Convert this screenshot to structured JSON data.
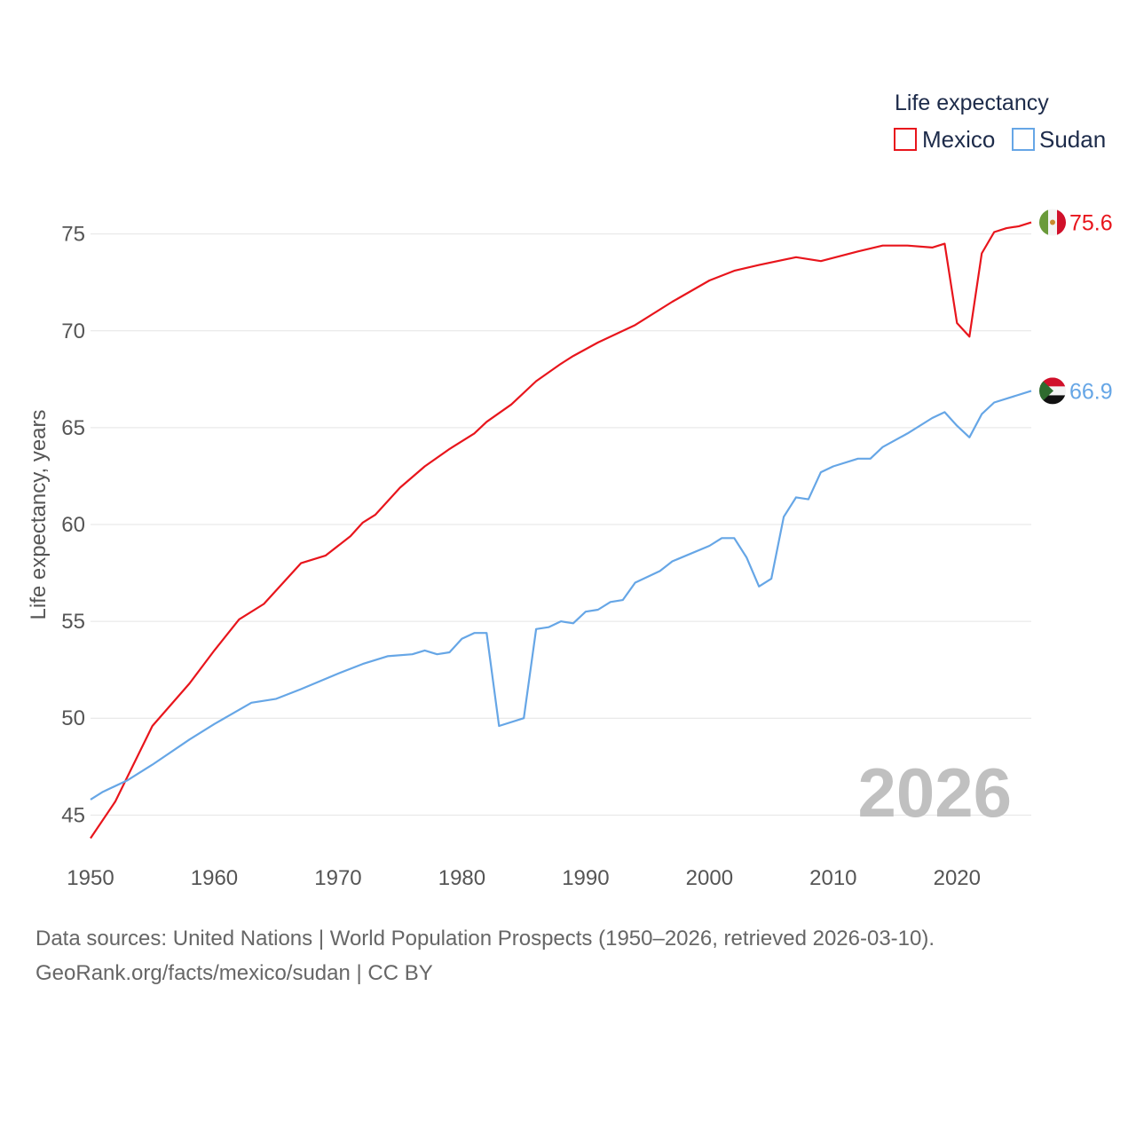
{
  "chart_data": {
    "type": "line",
    "legend_title": "Life expectancy",
    "legend_position": "top-right",
    "ylabel": "Life expectancy, years",
    "xlabel": "",
    "xlim": [
      1950,
      2026
    ],
    "ylim": [
      43,
      77
    ],
    "x_ticks": [
      1950,
      1960,
      1970,
      1980,
      1990,
      2000,
      2010,
      2020
    ],
    "y_ticks": [
      45,
      50,
      55,
      60,
      65,
      70,
      75
    ],
    "grid": true,
    "current_year_label": "2026",
    "series": [
      {
        "name": "Mexico",
        "color": "#e8151c",
        "end_label": "75.6",
        "flag": "mexico-flag",
        "points": [
          [
            1950,
            43.8
          ],
          [
            1952,
            45.7
          ],
          [
            1955,
            49.6
          ],
          [
            1958,
            51.8
          ],
          [
            1960,
            53.5
          ],
          [
            1962,
            55.1
          ],
          [
            1964,
            55.9
          ],
          [
            1967,
            58.0
          ],
          [
            1969,
            58.4
          ],
          [
            1971,
            59.4
          ],
          [
            1972,
            60.1
          ],
          [
            1973,
            60.5
          ],
          [
            1975,
            61.9
          ],
          [
            1977,
            63.0
          ],
          [
            1979,
            63.9
          ],
          [
            1981,
            64.7
          ],
          [
            1982,
            65.3
          ],
          [
            1984,
            66.2
          ],
          [
            1986,
            67.4
          ],
          [
            1988,
            68.3
          ],
          [
            1989,
            68.7
          ],
          [
            1991,
            69.4
          ],
          [
            1994,
            70.3
          ],
          [
            1997,
            71.5
          ],
          [
            2000,
            72.6
          ],
          [
            2002,
            73.1
          ],
          [
            2004,
            73.4
          ],
          [
            2007,
            73.8
          ],
          [
            2009,
            73.6
          ],
          [
            2012,
            74.1
          ],
          [
            2014,
            74.4
          ],
          [
            2016,
            74.4
          ],
          [
            2018,
            74.3
          ],
          [
            2019,
            74.5
          ],
          [
            2020,
            70.4
          ],
          [
            2021,
            69.7
          ],
          [
            2022,
            74.0
          ],
          [
            2023,
            75.1
          ],
          [
            2024,
            75.3
          ],
          [
            2025,
            75.4
          ],
          [
            2026,
            75.6
          ]
        ]
      },
      {
        "name": "Sudan",
        "color": "#66a6e6",
        "end_label": "66.9",
        "flag": "sudan-flag",
        "points": [
          [
            1950,
            45.8
          ],
          [
            1951,
            46.2
          ],
          [
            1953,
            46.8
          ],
          [
            1955,
            47.6
          ],
          [
            1958,
            48.9
          ],
          [
            1960,
            49.7
          ],
          [
            1963,
            50.8
          ],
          [
            1965,
            51.0
          ],
          [
            1967,
            51.5
          ],
          [
            1970,
            52.3
          ],
          [
            1972,
            52.8
          ],
          [
            1974,
            53.2
          ],
          [
            1976,
            53.3
          ],
          [
            1977,
            53.5
          ],
          [
            1978,
            53.3
          ],
          [
            1979,
            53.4
          ],
          [
            1980,
            54.1
          ],
          [
            1981,
            54.4
          ],
          [
            1982,
            54.4
          ],
          [
            1983,
            49.6
          ],
          [
            1985,
            50.0
          ],
          [
            1986,
            54.6
          ],
          [
            1987,
            54.7
          ],
          [
            1988,
            55.0
          ],
          [
            1989,
            54.9
          ],
          [
            1990,
            55.5
          ],
          [
            1991,
            55.6
          ],
          [
            1992,
            56.0
          ],
          [
            1993,
            56.1
          ],
          [
            1994,
            57.0
          ],
          [
            1996,
            57.6
          ],
          [
            1997,
            58.1
          ],
          [
            2000,
            58.9
          ],
          [
            2001,
            59.3
          ],
          [
            2002,
            59.3
          ],
          [
            2003,
            58.3
          ],
          [
            2004,
            56.8
          ],
          [
            2005,
            57.2
          ],
          [
            2006,
            60.4
          ],
          [
            2007,
            61.4
          ],
          [
            2008,
            61.3
          ],
          [
            2009,
            62.7
          ],
          [
            2010,
            63.0
          ],
          [
            2012,
            63.4
          ],
          [
            2013,
            63.4
          ],
          [
            2014,
            64.0
          ],
          [
            2016,
            64.7
          ],
          [
            2018,
            65.5
          ],
          [
            2019,
            65.8
          ],
          [
            2020,
            65.1
          ],
          [
            2021,
            64.5
          ],
          [
            2022,
            65.7
          ],
          [
            2023,
            66.3
          ],
          [
            2026,
            66.9
          ]
        ]
      }
    ]
  },
  "footer": {
    "line1": "Data sources: United Nations | World Population Prospects (1950–2026, retrieved 2026-03-10).",
    "line2": "GeoRank.org/facts/mexico/sudan | CC BY"
  }
}
